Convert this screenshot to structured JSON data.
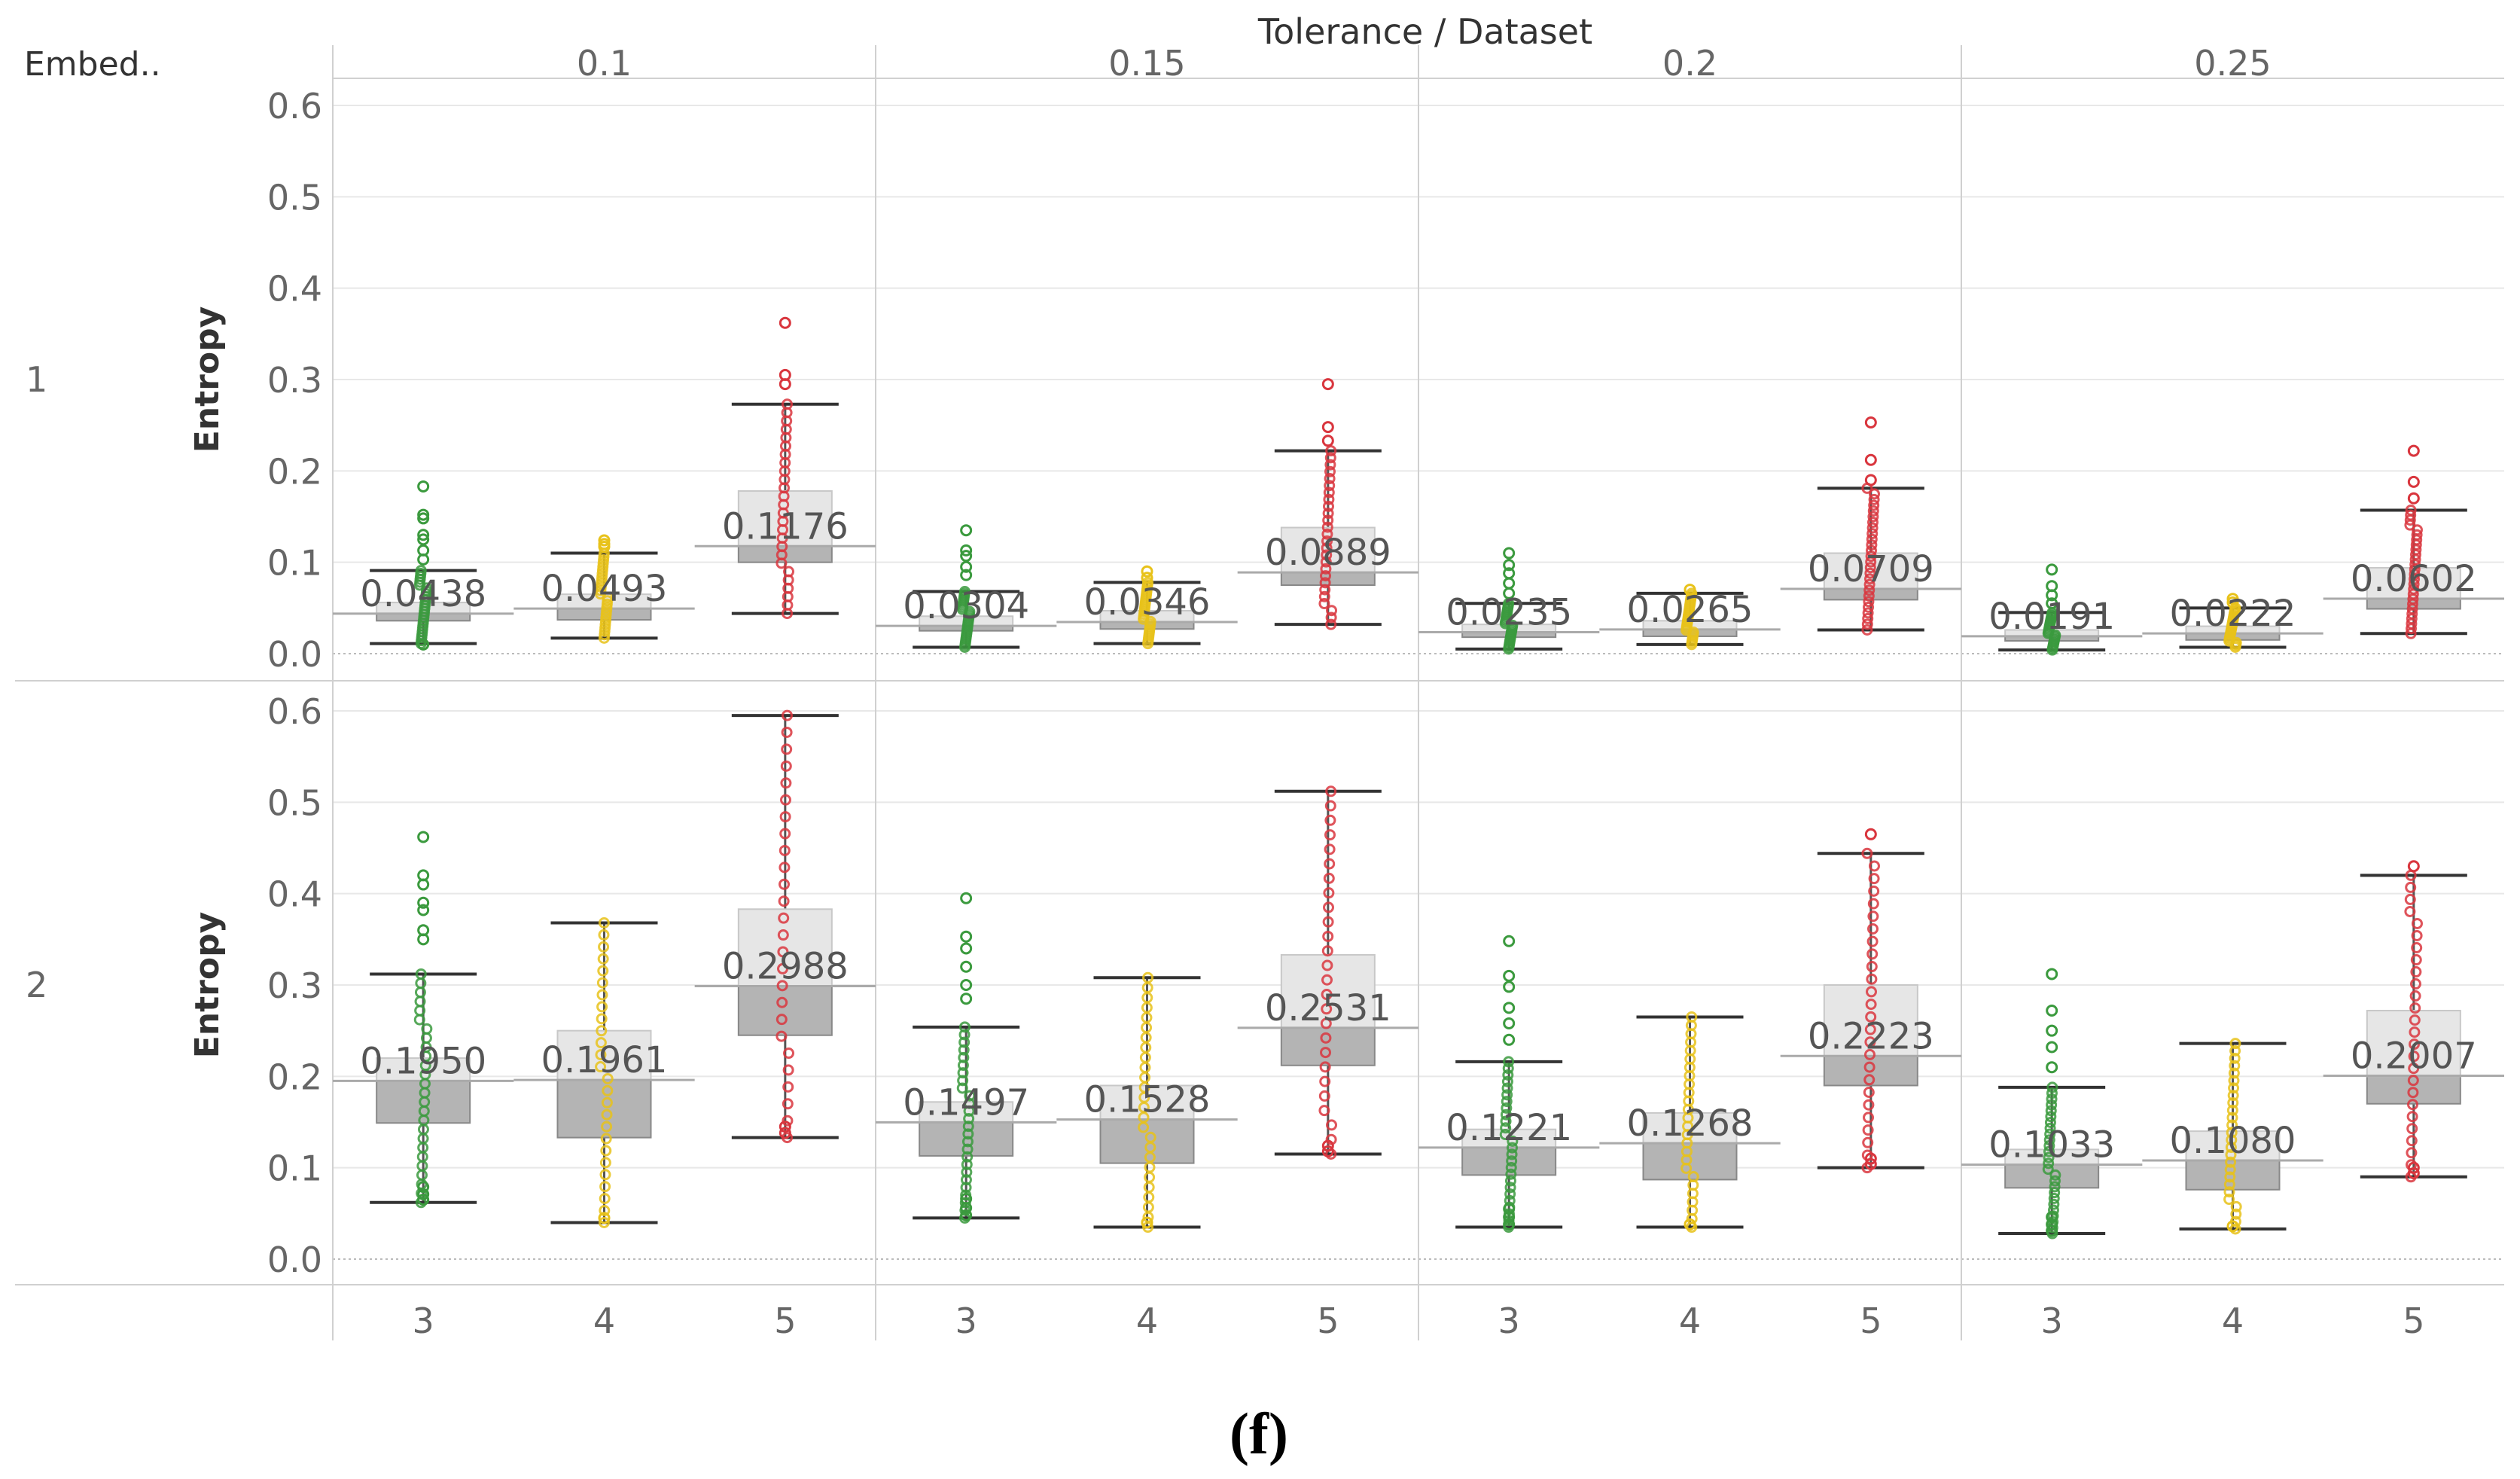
{
  "header": {
    "column_title": "Tolerance / Dataset",
    "row_title": "Embed..",
    "caption": "(f)"
  },
  "colors": {
    "dataset_3": "#3b9a3e",
    "dataset_4": "#e8c21a",
    "dataset_5": "#d9363e",
    "box_fill": "#b4b4b4",
    "box_stroke": "#888888",
    "gridline": "#e8e8e8",
    "divider": "#d0d0d0",
    "text": "#666666"
  },
  "chart_data": {
    "type": "boxplot",
    "ylabel": "Entropy",
    "ylim": [
      0,
      0.6
    ],
    "yticks": [
      "0.0",
      "0.1",
      "0.2",
      "0.3",
      "0.4",
      "0.5",
      "0.6"
    ],
    "tolerances": [
      "0.1",
      "0.15",
      "0.2",
      "0.25"
    ],
    "datasets": [
      "3",
      "4",
      "5"
    ],
    "embeds": [
      {
        "label": "1",
        "panels": [
          {
            "tolerance": "0.1",
            "boxes": [
              {
                "dataset": "3",
                "lower_whisker": 0.011,
                "q1": 0.036,
                "median": 0.044,
                "q3": 0.056,
                "upper_whisker": 0.091,
                "mean_label": "0.0438",
                "mean": 0.0438,
                "outliers": [
                  0.01,
                  0.103,
                  0.113,
                  0.125,
                  0.13,
                  0.148,
                  0.152,
                  0.183
                ]
              },
              {
                "dataset": "4",
                "lower_whisker": 0.017,
                "q1": 0.037,
                "median": 0.049,
                "q3": 0.065,
                "upper_whisker": 0.11,
                "mean_label": "0.0493",
                "mean": 0.0493,
                "outliers": [
                  0.117,
                  0.12,
                  0.124
                ]
              },
              {
                "dataset": "5",
                "lower_whisker": 0.044,
                "q1": 0.1,
                "median": 0.118,
                "q3": 0.178,
                "upper_whisker": 0.273,
                "mean_label": "0.1176",
                "mean": 0.1176,
                "outliers": [
                  0.295,
                  0.305,
                  0.362
                ]
              }
            ]
          },
          {
            "tolerance": "0.15",
            "boxes": [
              {
                "dataset": "3",
                "lower_whisker": 0.007,
                "q1": 0.025,
                "median": 0.03,
                "q3": 0.041,
                "upper_whisker": 0.068,
                "mean_label": "0.0304",
                "mean": 0.0304,
                "outliers": [
                  0.086,
                  0.095,
                  0.107,
                  0.113,
                  0.135
                ]
              },
              {
                "dataset": "4",
                "lower_whisker": 0.011,
                "q1": 0.027,
                "median": 0.035,
                "q3": 0.047,
                "upper_whisker": 0.078,
                "mean_label": "0.0346",
                "mean": 0.0346,
                "outliers": [
                  0.083,
                  0.09
                ]
              },
              {
                "dataset": "5",
                "lower_whisker": 0.032,
                "q1": 0.075,
                "median": 0.089,
                "q3": 0.138,
                "upper_whisker": 0.222,
                "mean_label": "0.0889",
                "mean": 0.0889,
                "outliers": [
                  0.233,
                  0.248,
                  0.295
                ]
              }
            ]
          },
          {
            "tolerance": "0.2",
            "boxes": [
              {
                "dataset": "3",
                "lower_whisker": 0.005,
                "q1": 0.018,
                "median": 0.023,
                "q3": 0.032,
                "upper_whisker": 0.055,
                "mean_label": "0.0235",
                "mean": 0.0235,
                "outliers": [
                  0.066,
                  0.077,
                  0.088,
                  0.097,
                  0.11
                ]
              },
              {
                "dataset": "4",
                "lower_whisker": 0.01,
                "q1": 0.019,
                "median": 0.026,
                "q3": 0.036,
                "upper_whisker": 0.066,
                "mean_label": "0.0265",
                "mean": 0.0265,
                "outliers": [
                  0.07
                ]
              },
              {
                "dataset": "5",
                "lower_whisker": 0.026,
                "q1": 0.059,
                "median": 0.071,
                "q3": 0.11,
                "upper_whisker": 0.181,
                "mean_label": "0.0709",
                "mean": 0.0709,
                "outliers": [
                  0.19,
                  0.212,
                  0.253
                ]
              }
            ]
          },
          {
            "tolerance": "0.25",
            "boxes": [
              {
                "dataset": "3",
                "lower_whisker": 0.004,
                "q1": 0.014,
                "median": 0.019,
                "q3": 0.026,
                "upper_whisker": 0.045,
                "mean_label": "0.0191",
                "mean": 0.0191,
                "outliers": [
                  0.055,
                  0.064,
                  0.074,
                  0.092
                ]
              },
              {
                "dataset": "4",
                "lower_whisker": 0.007,
                "q1": 0.015,
                "median": 0.022,
                "q3": 0.03,
                "upper_whisker": 0.05,
                "mean_label": "0.0222",
                "mean": 0.0222,
                "outliers": [
                  0.056,
                  0.06
                ]
              },
              {
                "dataset": "5",
                "lower_whisker": 0.022,
                "q1": 0.049,
                "median": 0.06,
                "q3": 0.094,
                "upper_whisker": 0.157,
                "mean_label": "0.0602",
                "mean": 0.0602,
                "outliers": [
                  0.17,
                  0.188,
                  0.222
                ]
              }
            ]
          }
        ]
      },
      {
        "label": "2",
        "panels": [
          {
            "tolerance": "0.1",
            "boxes": [
              {
                "dataset": "3",
                "lower_whisker": 0.062,
                "q1": 0.149,
                "median": 0.195,
                "q3": 0.22,
                "upper_whisker": 0.312,
                "mean_label": "0.1950",
                "mean": 0.195,
                "outliers": [
                  0.065,
                  0.071,
                  0.079,
                  0.35,
                  0.36,
                  0.382,
                  0.39,
                  0.41,
                  0.42,
                  0.462
                ]
              },
              {
                "dataset": "4",
                "lower_whisker": 0.04,
                "q1": 0.133,
                "median": 0.196,
                "q3": 0.25,
                "upper_whisker": 0.368,
                "mean_label": "0.1961",
                "mean": 0.1961,
                "outliers": [
                  0.045
                ]
              },
              {
                "dataset": "5",
                "lower_whisker": 0.133,
                "q1": 0.245,
                "median": 0.299,
                "q3": 0.383,
                "upper_whisker": 0.595,
                "mean_label": "0.2988",
                "mean": 0.2988,
                "outliers": [
                  0.138,
                  0.145
                ]
              }
            ]
          },
          {
            "tolerance": "0.15",
            "boxes": [
              {
                "dataset": "3",
                "lower_whisker": 0.045,
                "q1": 0.113,
                "median": 0.15,
                "q3": 0.172,
                "upper_whisker": 0.254,
                "mean_label": "0.1497",
                "mean": 0.1497,
                "outliers": [
                  0.048,
                  0.056,
                  0.066,
                  0.285,
                  0.3,
                  0.32,
                  0.34,
                  0.353,
                  0.395
                ]
              },
              {
                "dataset": "4",
                "lower_whisker": 0.035,
                "q1": 0.105,
                "median": 0.153,
                "q3": 0.19,
                "upper_whisker": 0.308,
                "mean_label": "0.1528",
                "mean": 0.1528,
                "outliers": [
                  0.04
                ]
              },
              {
                "dataset": "5",
                "lower_whisker": 0.115,
                "q1": 0.212,
                "median": 0.253,
                "q3": 0.333,
                "upper_whisker": 0.512,
                "mean_label": "0.2531",
                "mean": 0.2531,
                "outliers": [
                  0.118,
                  0.124
                ]
              }
            ]
          },
          {
            "tolerance": "0.2",
            "boxes": [
              {
                "dataset": "3",
                "lower_whisker": 0.035,
                "q1": 0.092,
                "median": 0.122,
                "q3": 0.142,
                "upper_whisker": 0.216,
                "mean_label": "0.1221",
                "mean": 0.1221,
                "outliers": [
                  0.038,
                  0.046,
                  0.055,
                  0.24,
                  0.258,
                  0.275,
                  0.298,
                  0.31,
                  0.348
                ]
              },
              {
                "dataset": "4",
                "lower_whisker": 0.035,
                "q1": 0.087,
                "median": 0.127,
                "q3": 0.16,
                "upper_whisker": 0.265,
                "mean_label": "0.1268",
                "mean": 0.1268,
                "outliers": [
                  0.038
                ]
              },
              {
                "dataset": "5",
                "lower_whisker": 0.1,
                "q1": 0.19,
                "median": 0.222,
                "q3": 0.3,
                "upper_whisker": 0.444,
                "mean_label": "0.2223",
                "mean": 0.2223,
                "outliers": [
                  0.104,
                  0.11,
                  0.465
                ]
              }
            ]
          },
          {
            "tolerance": "0.25",
            "boxes": [
              {
                "dataset": "3",
                "lower_whisker": 0.028,
                "q1": 0.078,
                "median": 0.103,
                "q3": 0.12,
                "upper_whisker": 0.188,
                "mean_label": "0.1033",
                "mean": 0.1033,
                "outliers": [
                  0.031,
                  0.038,
                  0.046,
                  0.21,
                  0.232,
                  0.25,
                  0.272,
                  0.312
                ]
              },
              {
                "dataset": "4",
                "lower_whisker": 0.033,
                "q1": 0.076,
                "median": 0.108,
                "q3": 0.14,
                "upper_whisker": 0.236,
                "mean_label": "0.1080",
                "mean": 0.108,
                "outliers": [
                  0.036
                ]
              },
              {
                "dataset": "5",
                "lower_whisker": 0.09,
                "q1": 0.17,
                "median": 0.2,
                "q3": 0.272,
                "upper_whisker": 0.42,
                "mean_label": "0.2007",
                "mean": 0.2007,
                "outliers": [
                  0.094,
                  0.1,
                  0.43
                ]
              }
            ]
          }
        ]
      }
    ]
  }
}
